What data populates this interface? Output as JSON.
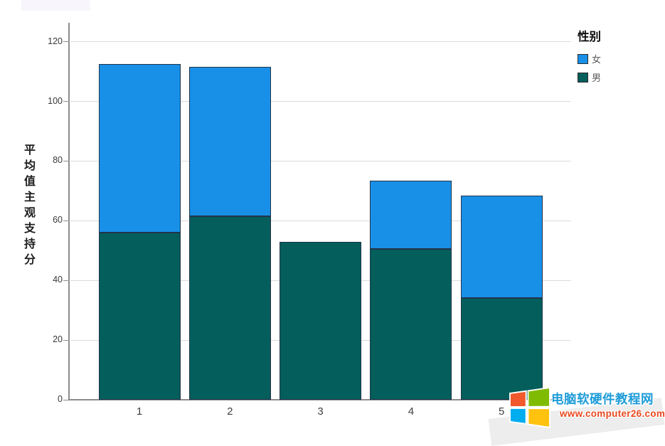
{
  "chart_data": {
    "type": "bar",
    "stacked": true,
    "title": "",
    "xlabel": "",
    "ylabel": "平均值主观支持分",
    "categories": [
      "1",
      "2",
      "3",
      "4",
      "5"
    ],
    "series": [
      {
        "name": "男",
        "color": "#045E5B",
        "values": [
          56,
          61.5,
          53,
          50.5,
          34
        ]
      },
      {
        "name": "女",
        "color": "#1890E8",
        "values": [
          56.5,
          50,
          0,
          23,
          34.5
        ]
      }
    ],
    "stack_order_bottom_to_top": [
      "男",
      "女"
    ],
    "ylim": [
      0,
      120
    ],
    "ytick_step": 20,
    "yticks": [
      "0",
      "20",
      "40",
      "60",
      "80",
      "100",
      "120"
    ],
    "grid": "horizontal",
    "legend": {
      "title": "性别",
      "position": "top-right",
      "items": [
        {
          "label": "女",
          "color": "#1890E8"
        },
        {
          "label": "男",
          "color": "#045E5B"
        }
      ]
    },
    "bar_border_color": "#22344A",
    "axis_color": "#8C8C8C",
    "gridline_color": "#DBDBDB"
  },
  "watermark": {
    "site_name": "电脑软硬件教程网",
    "site_url": "www.computer26.com",
    "site_name_color": "#1E9CD8",
    "site_url_color": "#E8491F",
    "logo_colors": {
      "top_left": "#F1582B",
      "top_right": "#80BB03",
      "bottom_left": "#00ADEF",
      "bottom_right": "#FFC20E"
    }
  }
}
